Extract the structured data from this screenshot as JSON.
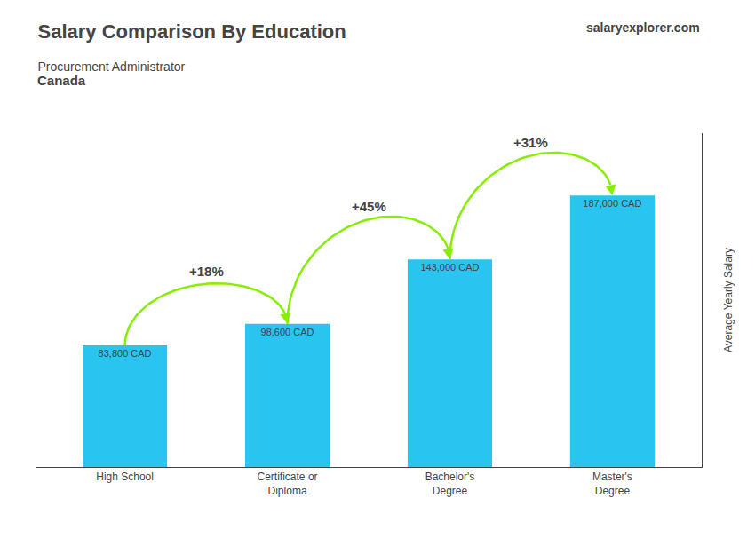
{
  "chart_data": {
    "type": "bar",
    "title": "Salary Comparison By Education",
    "subtitle": "Procurement Administrator",
    "ylabel": "Average Yearly Salary",
    "categories": [
      "High School",
      "Certificate or\nDiploma",
      "Bachelor's\nDegree",
      "Master's\nDegree"
    ],
    "values": [
      83800,
      98600,
      143000,
      187000
    ],
    "value_labels": [
      "83,800 CAD",
      "98,600 CAD",
      "143,000 CAD",
      "187,000 CAD"
    ],
    "data_labels": true,
    "color": "#29c4f0",
    "ylim": [
      0,
      230000
    ],
    "tick_labels": "x",
    "grid": false,
    "annotations": [
      {
        "text": "+18%",
        "from": "High School",
        "to": "Certificate or\nDiploma",
        "color": "#88ee00"
      },
      {
        "text": "+45%",
        "from": "Certificate or\nDiploma",
        "to": "Bachelor's\nDegree",
        "color": "#88ee00"
      },
      {
        "text": "+31%",
        "from": "Bachelor's\nDegree",
        "to": "Master's\nDegree",
        "color": "#88ee00"
      },
      {
        "text": "Canada"
      },
      {
        "text": "salary"
      },
      {
        "text": "explorer"
      },
      {
        "text": ".com"
      }
    ]
  }
}
